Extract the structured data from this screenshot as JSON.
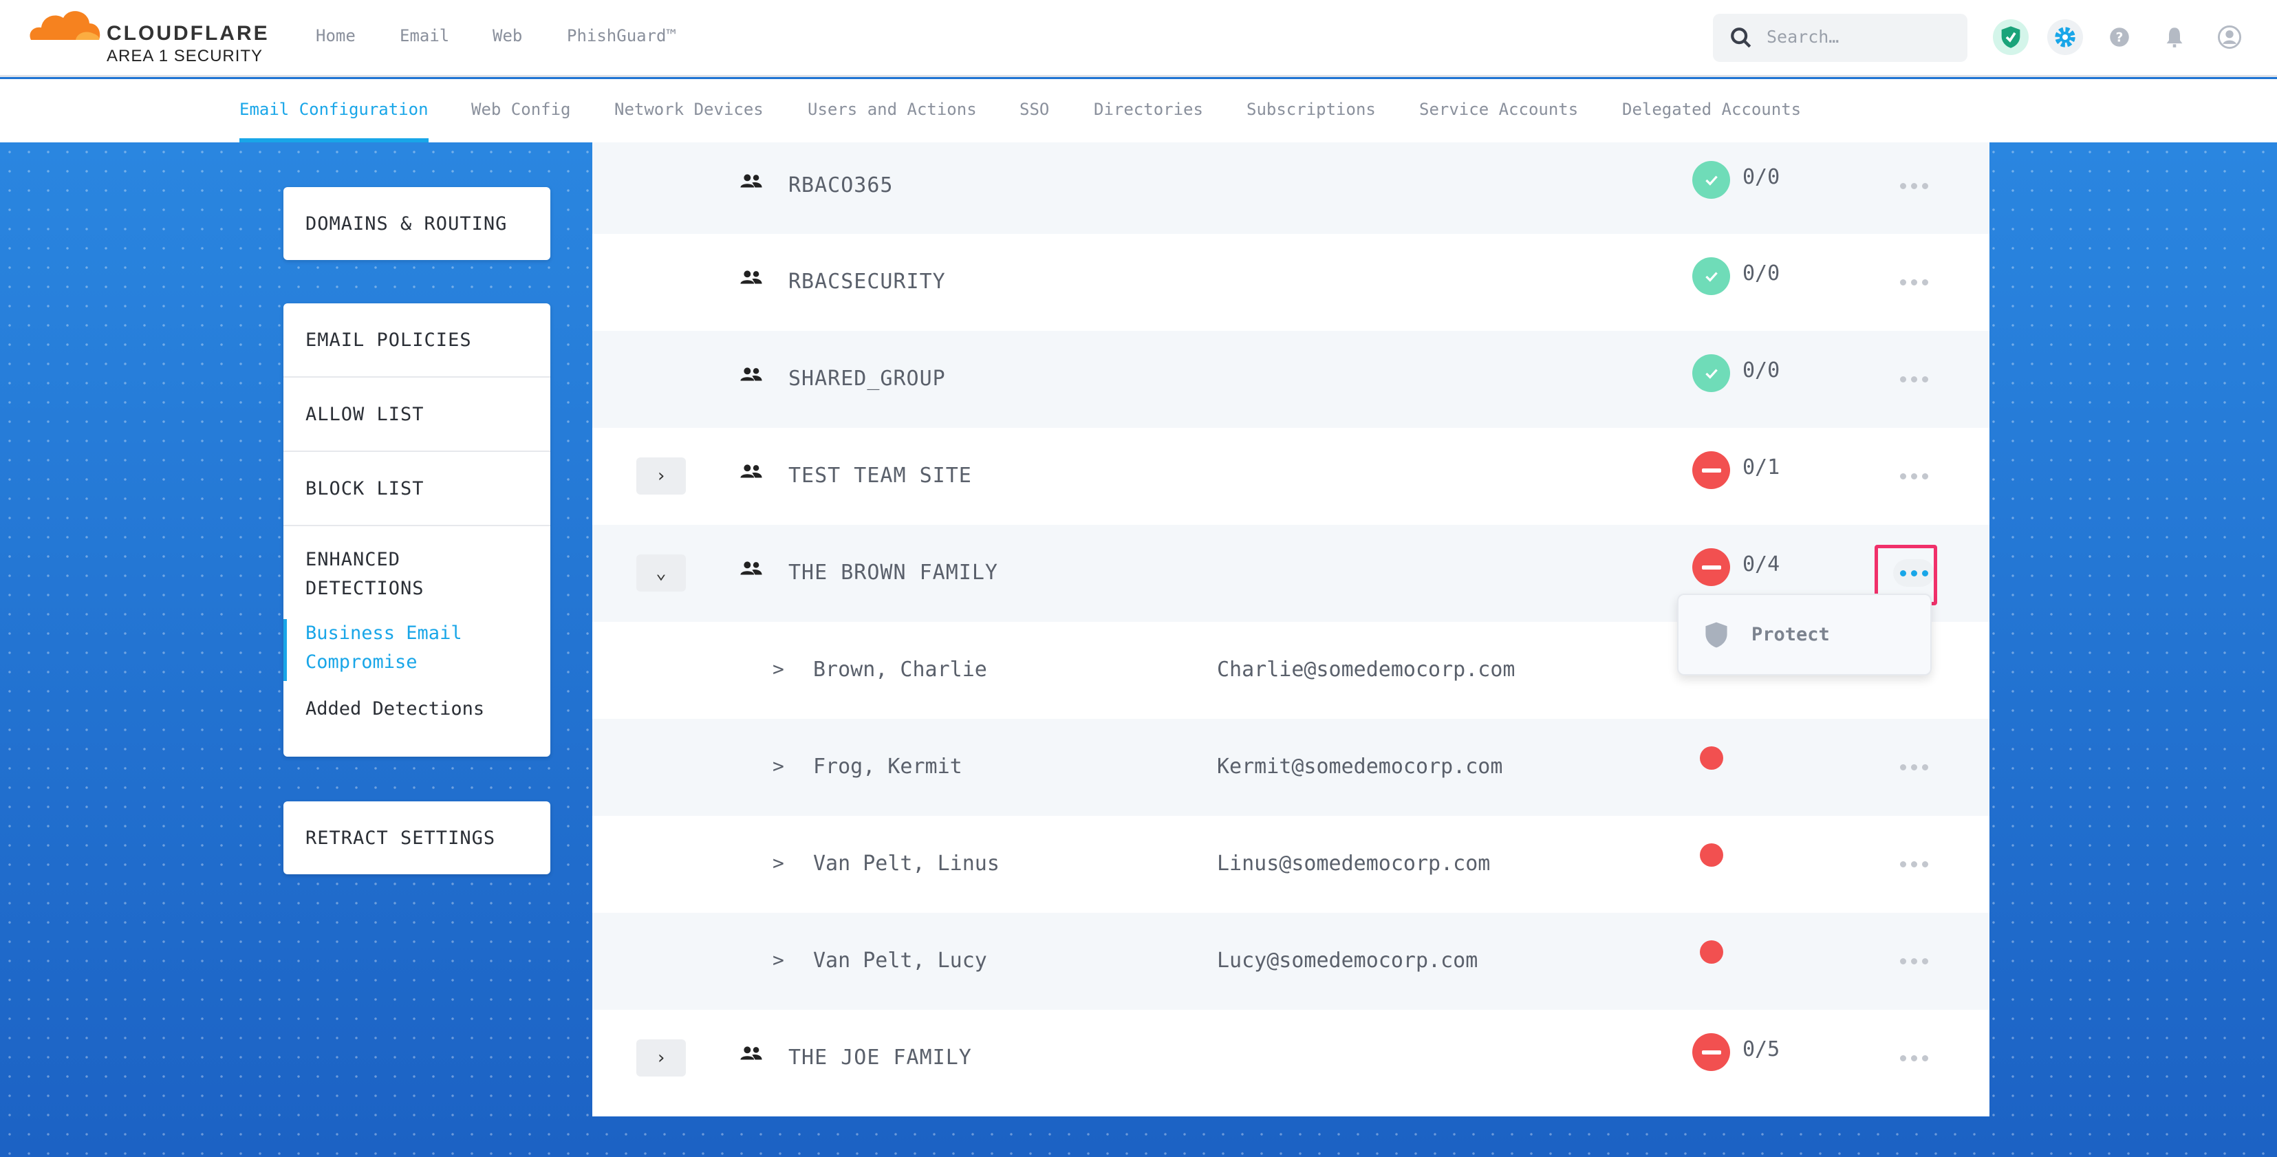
{
  "header": {
    "brand": "CLOUDFLARE",
    "brand_sub": "AREA 1 SECURITY",
    "nav": [
      "Home",
      "Email",
      "Web",
      "PhishGuard™"
    ],
    "search_placeholder": "Search…",
    "icons": [
      "shield-check-icon",
      "gear-icon",
      "help-icon",
      "bell-icon",
      "user-icon"
    ]
  },
  "subnav": {
    "tabs": [
      "Email Configuration",
      "Web Config",
      "Network Devices",
      "Users and Actions",
      "SSO",
      "Directories",
      "Subscriptions",
      "Service Accounts",
      "Delegated Accounts"
    ],
    "active": "Email Configuration"
  },
  "sidebar": {
    "domains": "DOMAINS & ROUTING",
    "policies": "EMAIL POLICIES",
    "allow": "ALLOW LIST",
    "block": "BLOCK LIST",
    "enhanced": "ENHANCED DETECTIONS",
    "bec": "Business Email Compromise",
    "added": "Added Detections",
    "retract": "RETRACT SETTINGS"
  },
  "colors": {
    "ok": "#6fdcb8",
    "bad": "#f25050",
    "accent": "#19a6e8",
    "highlight": "#f0306a"
  },
  "rows": [
    {
      "type": "group",
      "name": "RBACO365",
      "status": "ok",
      "count": "0/0",
      "expand": ""
    },
    {
      "type": "group",
      "name": "RBACSECURITY",
      "status": "ok",
      "count": "0/0",
      "expand": ""
    },
    {
      "type": "group",
      "name": "SHARED_GROUP",
      "status": "ok",
      "count": "0/0",
      "expand": ""
    },
    {
      "type": "group",
      "name": "TEST TEAM SITE",
      "status": "bad",
      "count": "0/1",
      "expand": "collapsed"
    },
    {
      "type": "group",
      "name": "THE BROWN FAMILY",
      "status": "bad",
      "count": "0/4",
      "expand": "expanded",
      "menu_open": true
    },
    {
      "type": "member",
      "name": "Brown, Charlie",
      "email": "Charlie@somedemocorp.com"
    },
    {
      "type": "member",
      "name": "Frog, Kermit",
      "email": "Kermit@somedemocorp.com"
    },
    {
      "type": "member",
      "name": "Van Pelt, Linus",
      "email": "Linus@somedemocorp.com"
    },
    {
      "type": "member",
      "name": "Van Pelt, Lucy",
      "email": "Lucy@somedemocorp.com"
    },
    {
      "type": "group",
      "name": "THE JOE FAMILY",
      "status": "bad",
      "count": "0/5",
      "expand": "collapsed"
    }
  ],
  "dropdown": {
    "items": [
      {
        "label": "Protect",
        "icon": "shield-icon"
      }
    ]
  }
}
